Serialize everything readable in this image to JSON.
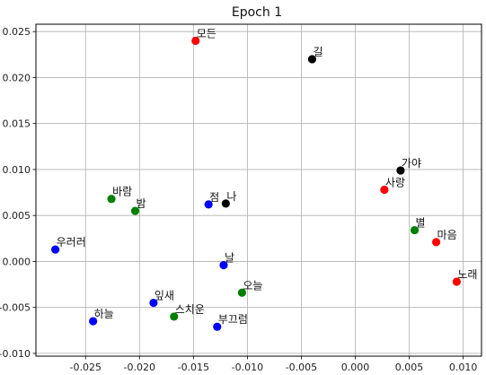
{
  "chart_data": {
    "type": "scatter",
    "title": "Epoch 1",
    "xlabel": "",
    "ylabel": "",
    "xlim": [
      -0.0296,
      0.0117
    ],
    "ylim": [
      -0.0103,
      0.0258
    ],
    "grid": true,
    "x_ticks": [
      -0.025,
      -0.02,
      -0.015,
      -0.01,
      -0.005,
      0.0,
      0.005,
      0.01
    ],
    "x_tick_labels": [
      "-0.025",
      "-0.020",
      "-0.015",
      "-0.010",
      "-0.005",
      "0.000",
      "0.005",
      "0.010"
    ],
    "y_ticks": [
      -0.01,
      -0.005,
      0.0,
      0.005,
      0.01,
      0.015,
      0.02,
      0.025
    ],
    "y_tick_labels": [
      "-0.010",
      "-0.005",
      "0.000",
      "0.005",
      "0.010",
      "0.015",
      "0.020",
      "0.025"
    ],
    "colors": {
      "red": "#ff0000",
      "black": "#000000",
      "blue": "#0000ff",
      "green": "#008000"
    },
    "points": [
      {
        "label": "모든",
        "x": -0.0148,
        "y": 0.024,
        "color": "red"
      },
      {
        "label": "길",
        "x": -0.004,
        "y": 0.022,
        "color": "black"
      },
      {
        "label": "가야",
        "x": 0.0042,
        "y": 0.0099,
        "color": "black"
      },
      {
        "label": "사랑",
        "x": 0.0027,
        "y": 0.0078,
        "color": "red"
      },
      {
        "label": "바람",
        "x": -0.0226,
        "y": 0.0068,
        "color": "green"
      },
      {
        "label": "밤",
        "x": -0.0204,
        "y": 0.0055,
        "color": "green"
      },
      {
        "label": "점",
        "x": -0.0136,
        "y": 0.0062,
        "color": "blue"
      },
      {
        "label": "나",
        "x": -0.012,
        "y": 0.0063,
        "color": "black"
      },
      {
        "label": "별",
        "x": 0.0055,
        "y": 0.0034,
        "color": "green"
      },
      {
        "label": "마음",
        "x": 0.0075,
        "y": 0.0021,
        "color": "red"
      },
      {
        "label": "우러러",
        "x": -0.0278,
        "y": 0.0013,
        "color": "blue"
      },
      {
        "label": "날",
        "x": -0.0122,
        "y": -0.0004,
        "color": "blue"
      },
      {
        "label": "노래",
        "x": 0.0094,
        "y": -0.0022,
        "color": "red"
      },
      {
        "label": "오늘",
        "x": -0.0105,
        "y": -0.0034,
        "color": "green"
      },
      {
        "label": "잎새",
        "x": -0.0187,
        "y": -0.0045,
        "color": "blue"
      },
      {
        "label": "하늘",
        "x": -0.0243,
        "y": -0.0065,
        "color": "blue"
      },
      {
        "label": "스치운",
        "x": -0.0168,
        "y": -0.006,
        "color": "green"
      },
      {
        "label": "부끄럼",
        "x": -0.0128,
        "y": -0.0071,
        "color": "blue"
      }
    ]
  }
}
